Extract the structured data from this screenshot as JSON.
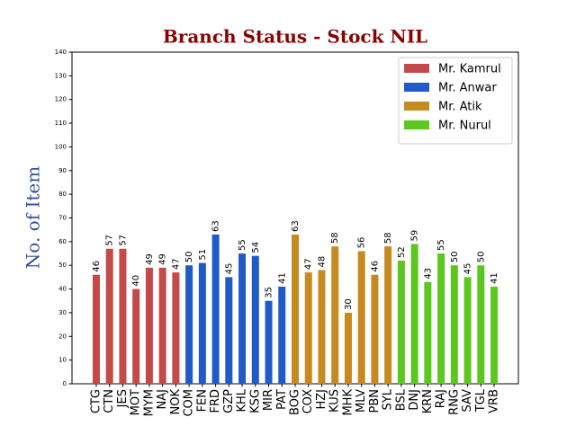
{
  "chart_data": {
    "type": "bar",
    "title": "Branch Status - Stock NIL",
    "y_label": "No. of Item",
    "categories": [
      "CTG",
      "CTN",
      "JES",
      "MOT",
      "MYM",
      "NAJ",
      "NOK",
      "COM",
      "FEN",
      "FRD",
      "GZP",
      "KHL",
      "KSG",
      "MIR",
      "PAT",
      "BOG",
      "COX",
      "HZJ",
      "KUS",
      "MHK",
      "MLV",
      "PBN",
      "SYL",
      "BSL",
      "DNJ",
      "KRN",
      "RAJ",
      "RNG",
      "SAV",
      "TGL",
      "VRB"
    ],
    "series": [
      {
        "name": "Mr. Kamrul",
        "color": "#c44a4a",
        "values": [
          46,
          57,
          57,
          40,
          49,
          49,
          47,
          null,
          null,
          null,
          null,
          null,
          null,
          null,
          null,
          null,
          null,
          null,
          null,
          null,
          null,
          null,
          null,
          null,
          null,
          null,
          null,
          null,
          null,
          null,
          null
        ]
      },
      {
        "name": "Mr. Anwar",
        "color": "#1f5ac6",
        "values": [
          null,
          null,
          null,
          null,
          null,
          null,
          null,
          50,
          51,
          63,
          45,
          55,
          54,
          35,
          41,
          null,
          null,
          null,
          null,
          null,
          null,
          null,
          null,
          null,
          null,
          null,
          null,
          null,
          null,
          null,
          null
        ]
      },
      {
        "name": "Mr. Atik",
        "color": "#c68a20",
        "values": [
          null,
          null,
          null,
          null,
          null,
          null,
          null,
          null,
          null,
          null,
          null,
          null,
          null,
          null,
          null,
          63,
          47,
          48,
          58,
          30,
          56,
          46,
          58,
          null,
          null,
          null,
          null,
          null,
          null,
          null,
          null
        ]
      },
      {
        "name": "Mr. Nurul",
        "color": "#5cc71e",
        "values": [
          null,
          null,
          null,
          null,
          null,
          null,
          null,
          null,
          null,
          null,
          null,
          null,
          null,
          null,
          null,
          null,
          null,
          null,
          null,
          null,
          null,
          null,
          null,
          52,
          59,
          43,
          55,
          50,
          45,
          50,
          41
        ]
      }
    ],
    "ylim": [
      0,
      140
    ],
    "yticks": [
      0,
      10,
      20,
      30,
      40,
      50,
      60,
      70,
      80,
      90,
      100,
      110,
      120,
      130,
      140
    ],
    "legend": "upper right"
  }
}
